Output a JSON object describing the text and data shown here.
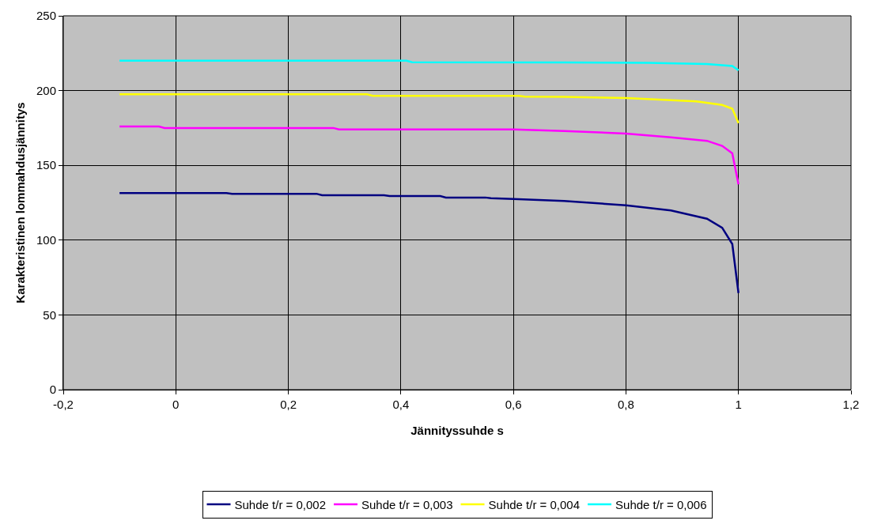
{
  "chart_data": {
    "type": "line",
    "xlabel": "Jännityssuhde s",
    "ylabel": "Karakteristinen lommahdusjännitys",
    "xlim": [
      -0.2,
      1.2
    ],
    "xticks": [
      {
        "value": -0.2,
        "label": "-0,2"
      },
      0,
      {
        "value": 0.2,
        "label": "0,2"
      },
      {
        "value": 0.4,
        "label": "0,4"
      },
      {
        "value": 0.6,
        "label": "0,6"
      },
      {
        "value": 0.8,
        "label": "0,8"
      },
      1,
      {
        "value": 1.2,
        "label": "1,2"
      }
    ],
    "ylim": [
      0,
      250
    ],
    "yticks": [
      0,
      50,
      100,
      150,
      200,
      250
    ],
    "grid": true,
    "legend": "bottom",
    "marker": "none",
    "line_style": "solid",
    "series": [
      {
        "name": "Suhde t/r = 0,002",
        "color": "#000080",
        "x": [
          -0.1,
          0.09,
          0.1,
          0.25,
          0.26,
          0.37,
          0.38,
          0.47,
          0.48,
          0.55,
          0.56,
          0.6,
          0.69,
          0.8,
          0.88,
          0.944,
          0.971,
          0.989,
          1.0
        ],
        "values": [
          131.5,
          131.5,
          131,
          131,
          130,
          130,
          129.5,
          129.5,
          128.5,
          128.5,
          128,
          127.5,
          126.2,
          123.3,
          119.8,
          114.3,
          108.3,
          97.4,
          64.6
        ]
      },
      {
        "name": "Suhde t/r = 0,003",
        "color": "#ff00ff",
        "x": [
          -0.1,
          -0.03,
          -0.02,
          0.28,
          0.29,
          0.6,
          0.69,
          0.8,
          0.88,
          0.944,
          0.971,
          0.989,
          1.0
        ],
        "values": [
          176,
          176,
          175,
          175,
          174,
          174,
          173,
          171.3,
          168.8,
          166.4,
          163,
          158,
          137.3
        ]
      },
      {
        "name": "Suhde t/r = 0,004",
        "color": "#ffff00",
        "x": [
          -0.1,
          0.34,
          0.35,
          0.61,
          0.62,
          0.69,
          0.8,
          0.925,
          0.971,
          0.989,
          1.0
        ],
        "values": [
          197.5,
          197.5,
          196.5,
          196.5,
          196,
          195.8,
          195,
          192.8,
          190.4,
          187.9,
          178.3
        ]
      },
      {
        "name": "Suhde t/r = 0,006",
        "color": "#00ffff",
        "x": [
          -0.1,
          0.41,
          0.42,
          0.69,
          0.84,
          0.944,
          0.989,
          1.0
        ],
        "values": [
          220,
          220,
          219,
          218.8,
          218.5,
          217.7,
          216.4,
          213.6
        ]
      }
    ]
  }
}
